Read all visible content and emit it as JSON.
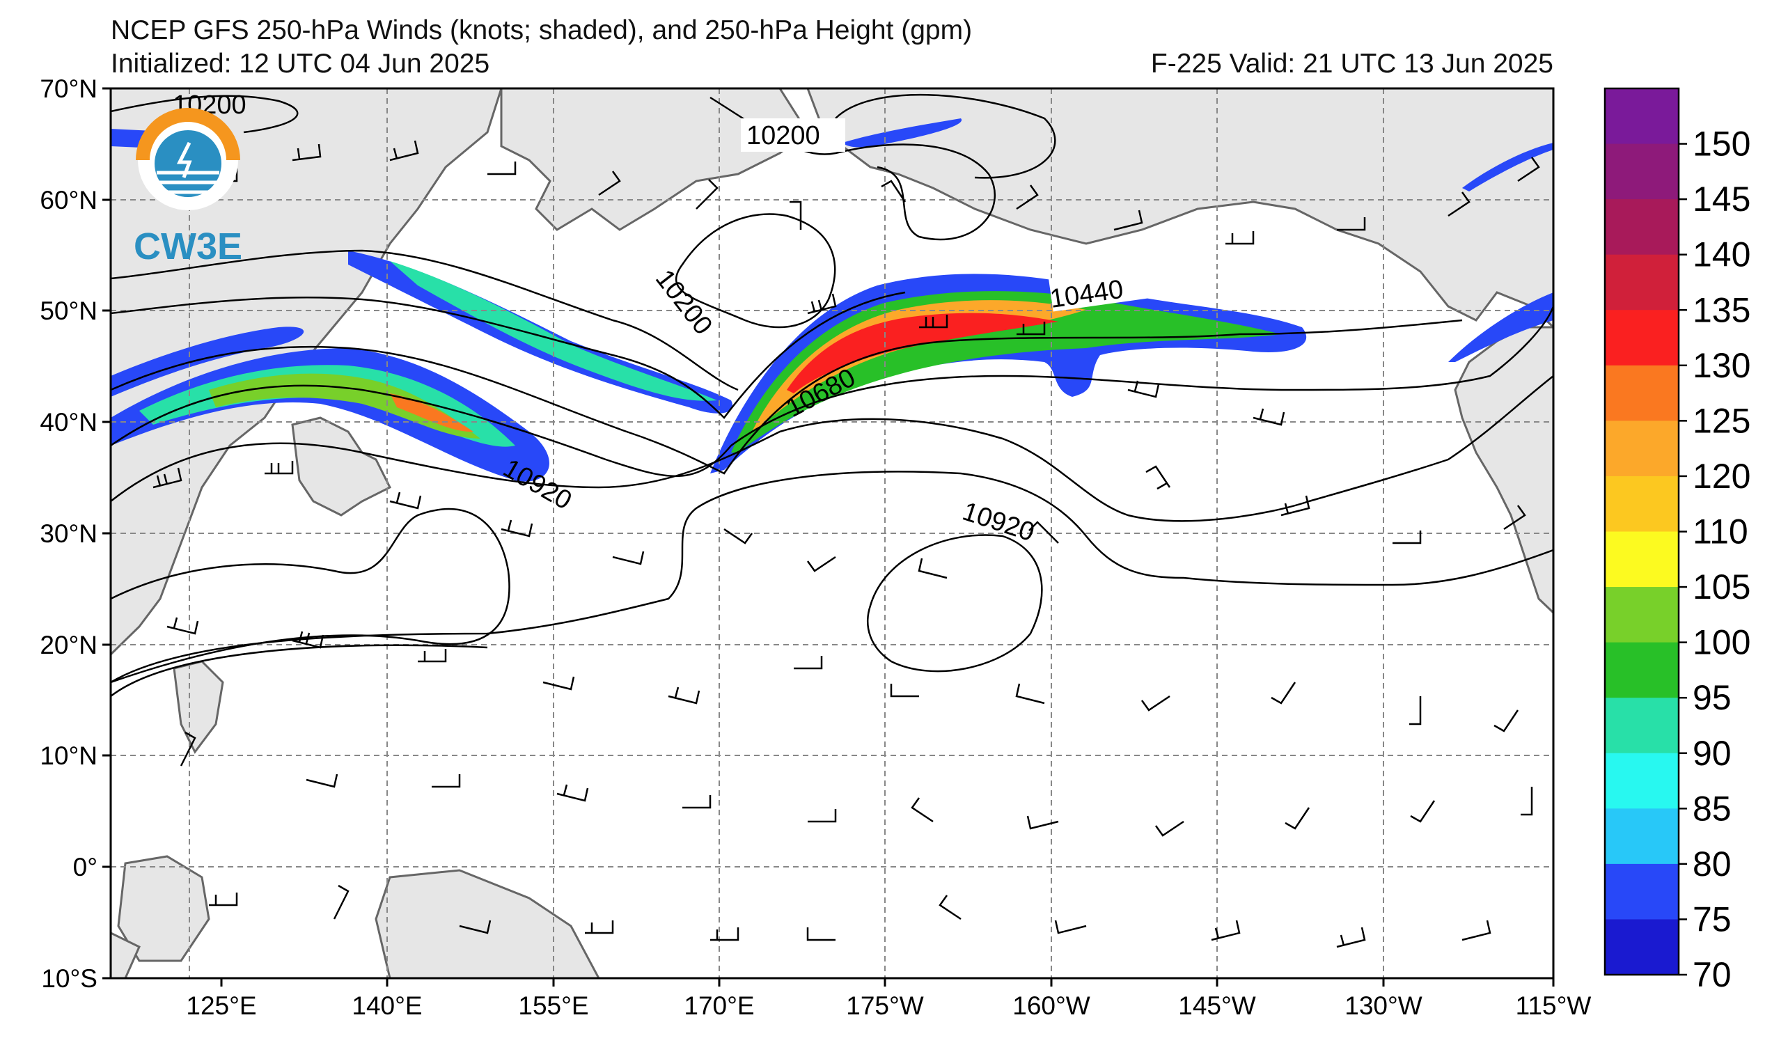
{
  "title": "NCEP GFS 250-hPa Winds (knots; shaded), and 250-hPa Height (gpm)",
  "initialized": "Initialized: 12 UTC 04 Jun 2025",
  "valid": "F-225  Valid: 21 UTC 13 Jun 2025",
  "logo": {
    "text": "CW3E",
    "colors": {
      "ring": "#f5961e",
      "globe": "#2a8fc2"
    }
  },
  "lat_labels": [
    "70°N",
    "60°N",
    "50°N",
    "40°N",
    "30°N",
    "20°N",
    "10°N",
    "0°",
    "10°S"
  ],
  "lon_labels": [
    "125°E",
    "140°E",
    "155°E",
    "170°E",
    "175°W",
    "160°W",
    "145°W",
    "130°W",
    "115°W"
  ],
  "colorbar": {
    "ticks": [
      "150",
      "145",
      "140",
      "135",
      "130",
      "125",
      "120",
      "110",
      "105",
      "100",
      "95",
      "90",
      "85",
      "80",
      "75",
      "70"
    ],
    "colors": [
      "#7a1a9a",
      "#8e1a7a",
      "#a81a5a",
      "#d0203a",
      "#fa2020",
      "#fa7820",
      "#fca82a",
      "#fcc820",
      "#fcfa20",
      "#78d02a",
      "#28c028",
      "#28e0a8",
      "#28f8f0",
      "#28c8f8",
      "#2848f8",
      "#1a1ad0"
    ]
  },
  "contour_labels": [
    "10200",
    "10200",
    "10200",
    "10440",
    "10680",
    "10920",
    "10920"
  ]
}
